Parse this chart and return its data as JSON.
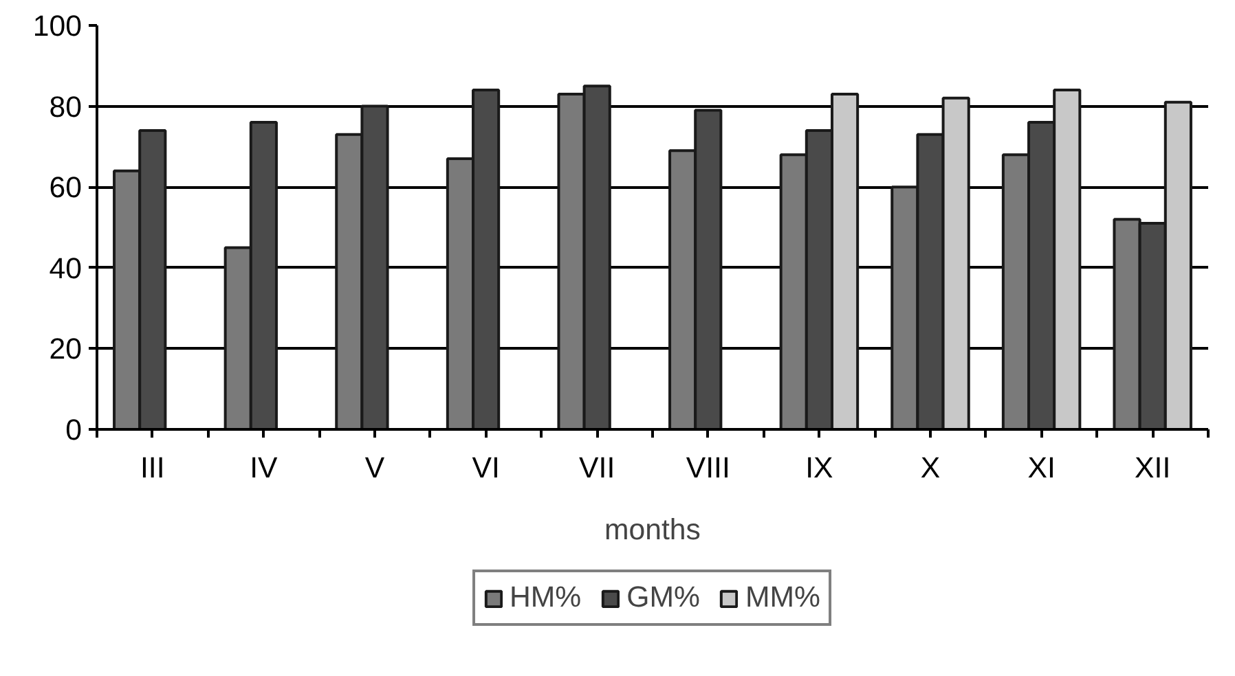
{
  "chart_data": {
    "type": "bar",
    "xlabel": "months",
    "categories": [
      "III",
      "IV",
      "V",
      "VI",
      "VII",
      "VIII",
      "IX",
      "X",
      "XI",
      "XII"
    ],
    "series": [
      {
        "name": "HM%",
        "color": "#7a7a7a",
        "values": [
          64,
          45,
          73,
          67,
          83,
          69,
          68,
          60,
          68,
          52
        ]
      },
      {
        "name": "GM%",
        "color": "#4a4a4a",
        "values": [
          74,
          76,
          80,
          84,
          85,
          79,
          74,
          73,
          76,
          51
        ]
      },
      {
        "name": "MM%",
        "color": "#c8c8c8",
        "values": [
          null,
          null,
          null,
          null,
          null,
          null,
          83,
          82,
          84,
          81
        ]
      }
    ],
    "ylim": [
      0,
      100
    ],
    "yticks": [
      0,
      20,
      40,
      60,
      80,
      100
    ],
    "grid": "y",
    "legend": "bottom"
  }
}
